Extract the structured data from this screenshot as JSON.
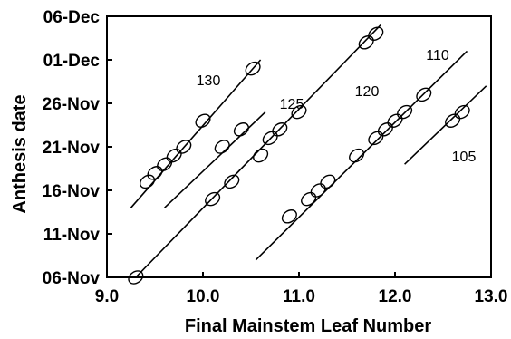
{
  "chart_data": {
    "type": "scatter",
    "xlabel": "Final Mainstem Leaf Number",
    "ylabel": "Anthesis date",
    "xlim": [
      9.0,
      13.0
    ],
    "ylim": [
      "06-Nov",
      "06-Dec"
    ],
    "x_ticks": [
      "9.0",
      "10.0",
      "11.0",
      "12.0",
      "13.0"
    ],
    "y_ticks": [
      "06-Nov",
      "11-Nov",
      "16-Nov",
      "21-Nov",
      "26-Nov",
      "01-Dec",
      "06-Dec"
    ],
    "marker": "open-ellipse",
    "fit_lines": true,
    "series": [
      {
        "name": "130",
        "points": [
          {
            "x": 9.42,
            "y": "17-Nov"
          },
          {
            "x": 9.5,
            "y": "18-Nov"
          },
          {
            "x": 9.6,
            "y": "19-Nov"
          },
          {
            "x": 9.7,
            "y": "20-Nov"
          },
          {
            "x": 9.8,
            "y": "21-Nov"
          },
          {
            "x": 10.0,
            "y": "24-Nov"
          },
          {
            "x": 10.52,
            "y": "30-Nov"
          }
        ],
        "line": {
          "from": {
            "x": 9.25,
            "y": "14-Nov"
          },
          "to": {
            "x": 10.6,
            "y": "01-Dec"
          }
        }
      },
      {
        "name": "125",
        "points": [
          {
            "x": 10.2,
            "y": "21-Nov"
          },
          {
            "x": 10.4,
            "y": "23-Nov"
          }
        ],
        "line": {
          "from": {
            "x": 9.6,
            "y": "14-Nov"
          },
          "to": {
            "x": 10.65,
            "y": "25-Nov"
          }
        }
      },
      {
        "name": "120",
        "points": [
          {
            "x": 9.3,
            "y": "06-Nov"
          },
          {
            "x": 10.1,
            "y": "15-Nov"
          },
          {
            "x": 10.3,
            "y": "17-Nov"
          },
          {
            "x": 10.6,
            "y": "20-Nov"
          },
          {
            "x": 10.7,
            "y": "22-Nov"
          },
          {
            "x": 10.8,
            "y": "23-Nov"
          },
          {
            "x": 11.0,
            "y": "25-Nov"
          },
          {
            "x": 11.7,
            "y": "03-Dec"
          },
          {
            "x": 11.8,
            "y": "04-Dec"
          }
        ],
        "line": {
          "from": {
            "x": 9.3,
            "y": "06-Nov"
          },
          "to": {
            "x": 11.85,
            "y": "05-Dec"
          }
        }
      },
      {
        "name": "110",
        "points": [
          {
            "x": 10.9,
            "y": "13-Nov"
          },
          {
            "x": 11.1,
            "y": "15-Nov"
          },
          {
            "x": 11.2,
            "y": "16-Nov"
          },
          {
            "x": 11.3,
            "y": "17-Nov"
          },
          {
            "x": 11.6,
            "y": "20-Nov"
          },
          {
            "x": 11.8,
            "y": "22-Nov"
          },
          {
            "x": 11.9,
            "y": "23-Nov"
          },
          {
            "x": 12.0,
            "y": "24-Nov"
          },
          {
            "x": 12.1,
            "y": "25-Nov"
          },
          {
            "x": 12.3,
            "y": "27-Nov"
          }
        ],
        "line": {
          "from": {
            "x": 10.55,
            "y": "08-Nov"
          },
          "to": {
            "x": 12.75,
            "y": "02-Dec"
          }
        }
      },
      {
        "name": "105",
        "points": [
          {
            "x": 12.6,
            "y": "24-Nov"
          },
          {
            "x": 12.7,
            "y": "25-Nov"
          }
        ],
        "line": {
          "from": {
            "x": 12.1,
            "y": "19-Nov"
          },
          "to": {
            "x": 12.95,
            "y": "28-Nov"
          }
        }
      }
    ]
  }
}
